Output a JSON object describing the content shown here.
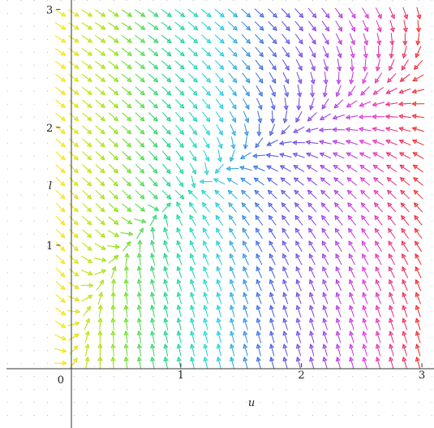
{
  "chart_data": {
    "type": "vector-field",
    "xlabel": "u",
    "ylabel": "l",
    "origin_label": "0",
    "xlim": [
      -0.5,
      3.1
    ],
    "ylim": [
      -0.55,
      3.08
    ],
    "x_ticks": [
      {
        "value": 1,
        "label": "1"
      },
      {
        "value": 2,
        "label": "2"
      },
      {
        "value": 3,
        "label": "3"
      }
    ],
    "y_ticks": [
      {
        "value": 1,
        "label": "1"
      },
      {
        "value": 2,
        "label": "2"
      },
      {
        "value": 3,
        "label": "3"
      }
    ],
    "grid_x": [
      0.0,
      0.11,
      0.22,
      0.33,
      0.44,
      0.55,
      0.66,
      0.77,
      0.88,
      0.99,
      1.1,
      1.21,
      1.32,
      1.43,
      1.54,
      1.65,
      1.76,
      1.87,
      1.98,
      2.09,
      2.2,
      2.31,
      2.42,
      2.53,
      2.64,
      2.75,
      2.86,
      2.97
    ],
    "grid_y": [
      0.0,
      0.11,
      0.22,
      0.33,
      0.44,
      0.55,
      0.66,
      0.77,
      0.88,
      0.99,
      1.1,
      1.21,
      1.32,
      1.43,
      1.54,
      1.65,
      1.76,
      1.87,
      1.98,
      2.09,
      2.2,
      2.31,
      2.42,
      2.53,
      2.64,
      2.75,
      2.86,
      2.97
    ],
    "arrow_color_scale": [
      "#f4e400",
      "#8ee000",
      "#12d37e",
      "#18d8dc",
      "#3a5ee0",
      "#8a3ce8",
      "#e030d8",
      "#f02828"
    ]
  }
}
